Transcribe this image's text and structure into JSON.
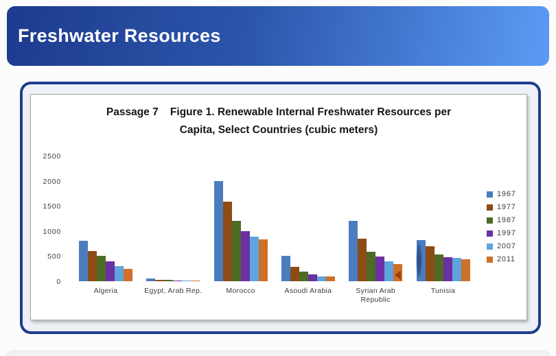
{
  "header": {
    "title": "Freshwater Resources"
  },
  "colors": {
    "header_gradient_start": "#1d3b8e",
    "header_gradient_end": "#5b9bf5",
    "card_border": "#1f3d8c",
    "card_background": "#edf0f6"
  },
  "chart_data": {
    "type": "bar",
    "title_lines": [
      "Passage 7    Figure 1. Renewable Internal Freshwater Resources per",
      "Capita, Select Countries (cubic meters)"
    ],
    "categories": [
      "Algeria",
      "Egypt, Arab Rep.",
      "Morocco",
      "Asoudi Arabia",
      "Syrian Arab\nRepublic",
      "Tunisia"
    ],
    "series": [
      {
        "name": "1967",
        "color": "#4B7CBE",
        "values": [
          800,
          50,
          2000,
          500,
          1200,
          820
        ]
      },
      {
        "name": "1977",
        "color": "#8D4B15",
        "values": [
          600,
          30,
          1590,
          290,
          850,
          700
        ]
      },
      {
        "name": "1987",
        "color": "#4E6B24",
        "values": [
          500,
          25,
          1200,
          190,
          590,
          530
        ]
      },
      {
        "name": "1997",
        "color": "#6B31A1",
        "values": [
          400,
          20,
          1000,
          140,
          490,
          480
        ]
      },
      {
        "name": "2007",
        "color": "#5FA4DC",
        "values": [
          300,
          15,
          890,
          90,
          400,
          460
        ]
      },
      {
        "name": "2011",
        "color": "#CD7029",
        "values": [
          250,
          10,
          840,
          90,
          340,
          440
        ]
      }
    ],
    "ylabel": "",
    "xlabel": "",
    "ylim": [
      0,
      2500
    ],
    "yticks": [
      2500,
      2000,
      1500,
      1000,
      500,
      0
    ],
    "legend_position": "right",
    "grid": false
  }
}
